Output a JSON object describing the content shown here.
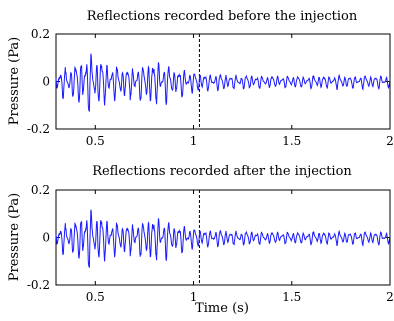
{
  "chart_data": [
    {
      "type": "line",
      "title": "Reflections recorded before the injection",
      "ylabel": "Pressure (Pa)",
      "xlabel": "",
      "xlim": [
        0.3,
        2.0
      ],
      "ylim": [
        -0.2,
        0.2
      ],
      "xticks": [
        0.5,
        1,
        1.5,
        2
      ],
      "xtick_labels": [
        "0.5",
        "1",
        "1.5",
        "2"
      ],
      "yticks": [
        -0.2,
        0,
        0.2
      ],
      "ytick_labels": [
        "-0.2",
        "0",
        "0.2"
      ],
      "marker_line_x": 1.03,
      "series": [
        {
          "color": "#1a1aff",
          "envelope": [
            [
              0.3,
              0.05
            ],
            [
              0.4,
              0.09
            ],
            [
              0.45,
              0.15
            ],
            [
              0.5,
              0.13
            ],
            [
              0.55,
              0.1
            ],
            [
              0.6,
              0.08
            ],
            [
              0.7,
              0.08
            ],
            [
              0.8,
              0.11
            ],
            [
              0.9,
              0.07
            ],
            [
              1.0,
              0.05
            ],
            [
              1.1,
              0.04
            ],
            [
              1.2,
              0.035
            ],
            [
              1.4,
              0.03
            ],
            [
              1.6,
              0.03
            ],
            [
              1.8,
              0.03
            ],
            [
              2.0,
              0.03
            ]
          ]
        }
      ]
    },
    {
      "type": "line",
      "title": "Reflections recorded after the injection",
      "ylabel": "Pressure (Pa)",
      "xlabel": "Time (s)",
      "xlim": [
        0.3,
        2.0
      ],
      "ylim": [
        -0.2,
        0.2
      ],
      "xticks": [
        0.5,
        1,
        1.5,
        2
      ],
      "xtick_labels": [
        "0.5",
        "1",
        "1.5",
        "2"
      ],
      "yticks": [
        -0.2,
        0,
        0.2
      ],
      "ytick_labels": [
        "-0.2",
        "0",
        "0.2"
      ],
      "marker_line_x": 1.03,
      "series": [
        {
          "color": "#1a1aff",
          "envelope": [
            [
              0.3,
              0.05
            ],
            [
              0.4,
              0.09
            ],
            [
              0.45,
              0.15
            ],
            [
              0.5,
              0.13
            ],
            [
              0.55,
              0.1
            ],
            [
              0.6,
              0.08
            ],
            [
              0.7,
              0.08
            ],
            [
              0.8,
              0.11
            ],
            [
              0.9,
              0.07
            ],
            [
              1.0,
              0.05
            ],
            [
              1.1,
              0.04
            ],
            [
              1.2,
              0.035
            ],
            [
              1.4,
              0.03
            ],
            [
              1.6,
              0.03
            ],
            [
              1.8,
              0.03
            ],
            [
              2.0,
              0.03
            ]
          ]
        }
      ]
    }
  ]
}
